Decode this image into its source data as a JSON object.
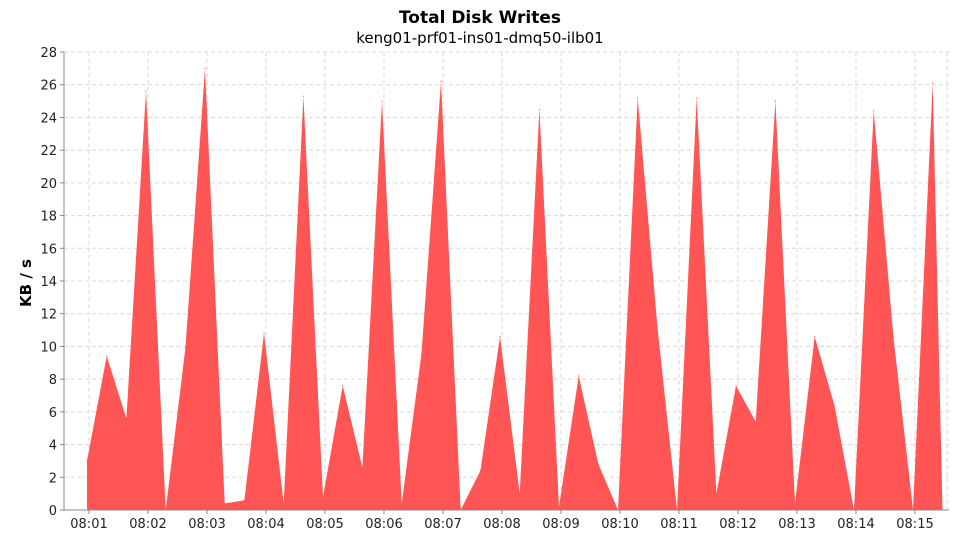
{
  "chart_data": {
    "type": "area",
    "title": "Total Disk Writes",
    "subtitle": "keng01-prf01-ins01-dmq50-ilb01",
    "xlabel": "",
    "ylabel": "KB / s",
    "ylim": [
      0,
      28
    ],
    "yticks": [
      "0",
      "2",
      "4",
      "6",
      "8",
      "10",
      "12",
      "14",
      "16",
      "18",
      "20",
      "22",
      "24",
      "26",
      "28"
    ],
    "xticks": [
      "08:01",
      "08:02",
      "08:03",
      "08:04",
      "08:05",
      "08:06",
      "08:07",
      "08:08",
      "08:09",
      "08:10",
      "08:11",
      "08:12",
      "08:13",
      "08:14",
      "08:15"
    ],
    "grid": true,
    "color": "#ff5555",
    "x": [
      "08:00:58",
      "08:01:18",
      "08:01:38",
      "08:01:58",
      "08:02:18",
      "08:02:38",
      "08:02:58",
      "08:03:18",
      "08:03:38",
      "08:03:58",
      "08:04:18",
      "08:04:38",
      "08:04:58",
      "08:05:18",
      "08:05:38",
      "08:05:58",
      "08:06:18",
      "08:06:38",
      "08:06:58",
      "08:07:18",
      "08:07:38",
      "08:07:58",
      "08:08:18",
      "08:08:38",
      "08:08:58",
      "08:09:18",
      "08:09:38",
      "08:09:58",
      "08:10:18",
      "08:10:38",
      "08:10:58",
      "08:11:18",
      "08:11:38",
      "08:11:58",
      "08:12:18",
      "08:12:38",
      "08:12:58",
      "08:13:18",
      "08:13:38",
      "08:13:58",
      "08:14:18",
      "08:14:38",
      "08:14:58",
      "08:15:18",
      "08:15:28"
    ],
    "series": [
      {
        "values": [
          3.0,
          9.4,
          5.6,
          25.6,
          0.0,
          9.9,
          27.0,
          0.4,
          0.6,
          10.8,
          0.4,
          25.3,
          0.8,
          7.6,
          2.6,
          25.0,
          0.4,
          9.5,
          26.2,
          0.0,
          2.4,
          10.6,
          1.0,
          24.5,
          0.2,
          8.2,
          2.8,
          0.0,
          25.2,
          11.2,
          0.0,
          25.2,
          1.0,
          7.6,
          5.4,
          25.0,
          0.4,
          10.6,
          6.4,
          0.0,
          24.4,
          10.6,
          0.0,
          26.1,
          0.0
        ]
      }
    ]
  }
}
